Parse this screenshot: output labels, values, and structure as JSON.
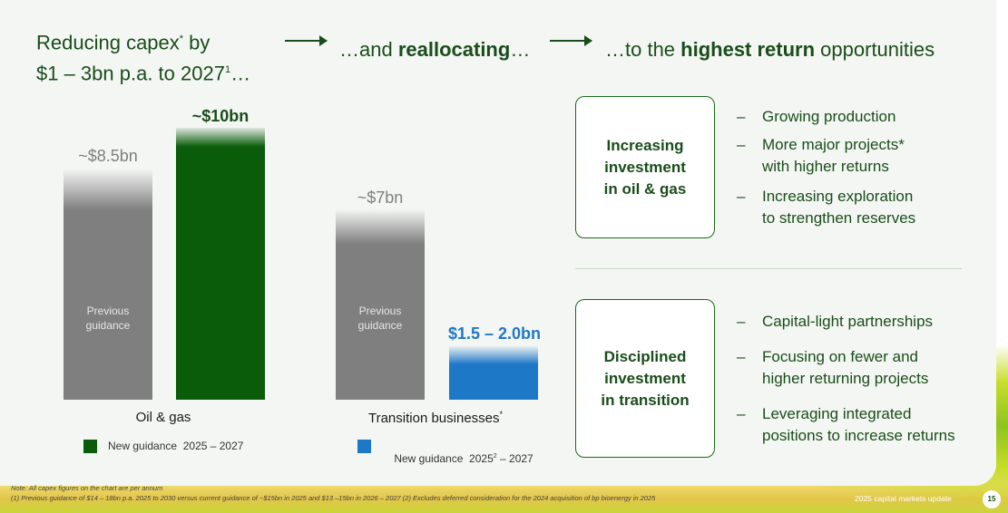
{
  "header": {
    "title_part1": "Reducing capex",
    "title_sup": "*",
    "title_part2": " by",
    "title_line2": "$1 – 3bn p.a. to 2027",
    "title_line2_sup": "1",
    "title_line2_end": "…",
    "middle_prefix": "…and ",
    "middle_bold": "reallocating",
    "middle_suffix": "…",
    "right_prefix": "…to the ",
    "right_bold": "highest return",
    "right_suffix": " opportunities"
  },
  "chart_data": {
    "type": "bar",
    "groups": [
      {
        "name": "Oil & gas",
        "bars": [
          {
            "label": "Previous guidance",
            "value_label": "~$8.5bn",
            "value": 8.5,
            "color": "#7f7f7f"
          },
          {
            "label": "New guidance",
            "value_label": "~$10bn",
            "value": 10,
            "color": "#0a5c0a"
          }
        ],
        "legend": "New guidance  2025 – 2027",
        "legend_color": "#0a5c0a"
      },
      {
        "name": "Transition businesses",
        "name_sup": "*",
        "bars": [
          {
            "label": "Previous guidance",
            "value_label": "~$7bn",
            "value": 7,
            "color": "#7f7f7f"
          },
          {
            "label": "New guidance",
            "value_label": "$1.5 – 2.0bn",
            "value": 2.0,
            "color": "#1e78c8"
          }
        ],
        "legend_prefix": "New guidance  2025",
        "legend_sup": "2",
        "legend_suffix": " – 2027",
        "legend_color": "#1e78c8"
      }
    ],
    "previous_label_line1": "Previous",
    "previous_label_line2": "guidance"
  },
  "boxes": [
    {
      "title": [
        "Increasing",
        "investment",
        "in oil & gas"
      ],
      "bullets": [
        "Growing production",
        "More major projects*",
        "with higher returns",
        "Increasing exploration",
        "to strengthen reserves"
      ]
    },
    {
      "title": [
        "Disciplined",
        "investment",
        "in transition"
      ],
      "bullets": [
        "Capital-light partnerships",
        "Focusing on fewer and",
        "higher returning projects",
        "Leveraging integrated",
        "positions to increase returns"
      ]
    }
  ],
  "notes": {
    "line1": "Note: All capex figures on the chart are per annum",
    "line2": "(1) Previous guidance of $14 – 18bn p.a. 2025 to 2030 versus current guidance of ~$15bn in 2025 and $13 –15bn in 2026 – 2027 (2) Excludes deferred consideration for the 2024 acquisition of bp bioenergy in 2025"
  },
  "footer": {
    "text": "2025 capital markets update",
    "page": "15"
  },
  "colors": {
    "dark_green": "#1a4d1a",
    "bar_green": "#0a5c0a",
    "bar_blue": "#1e78c8",
    "bar_grey": "#7f7f7f"
  }
}
